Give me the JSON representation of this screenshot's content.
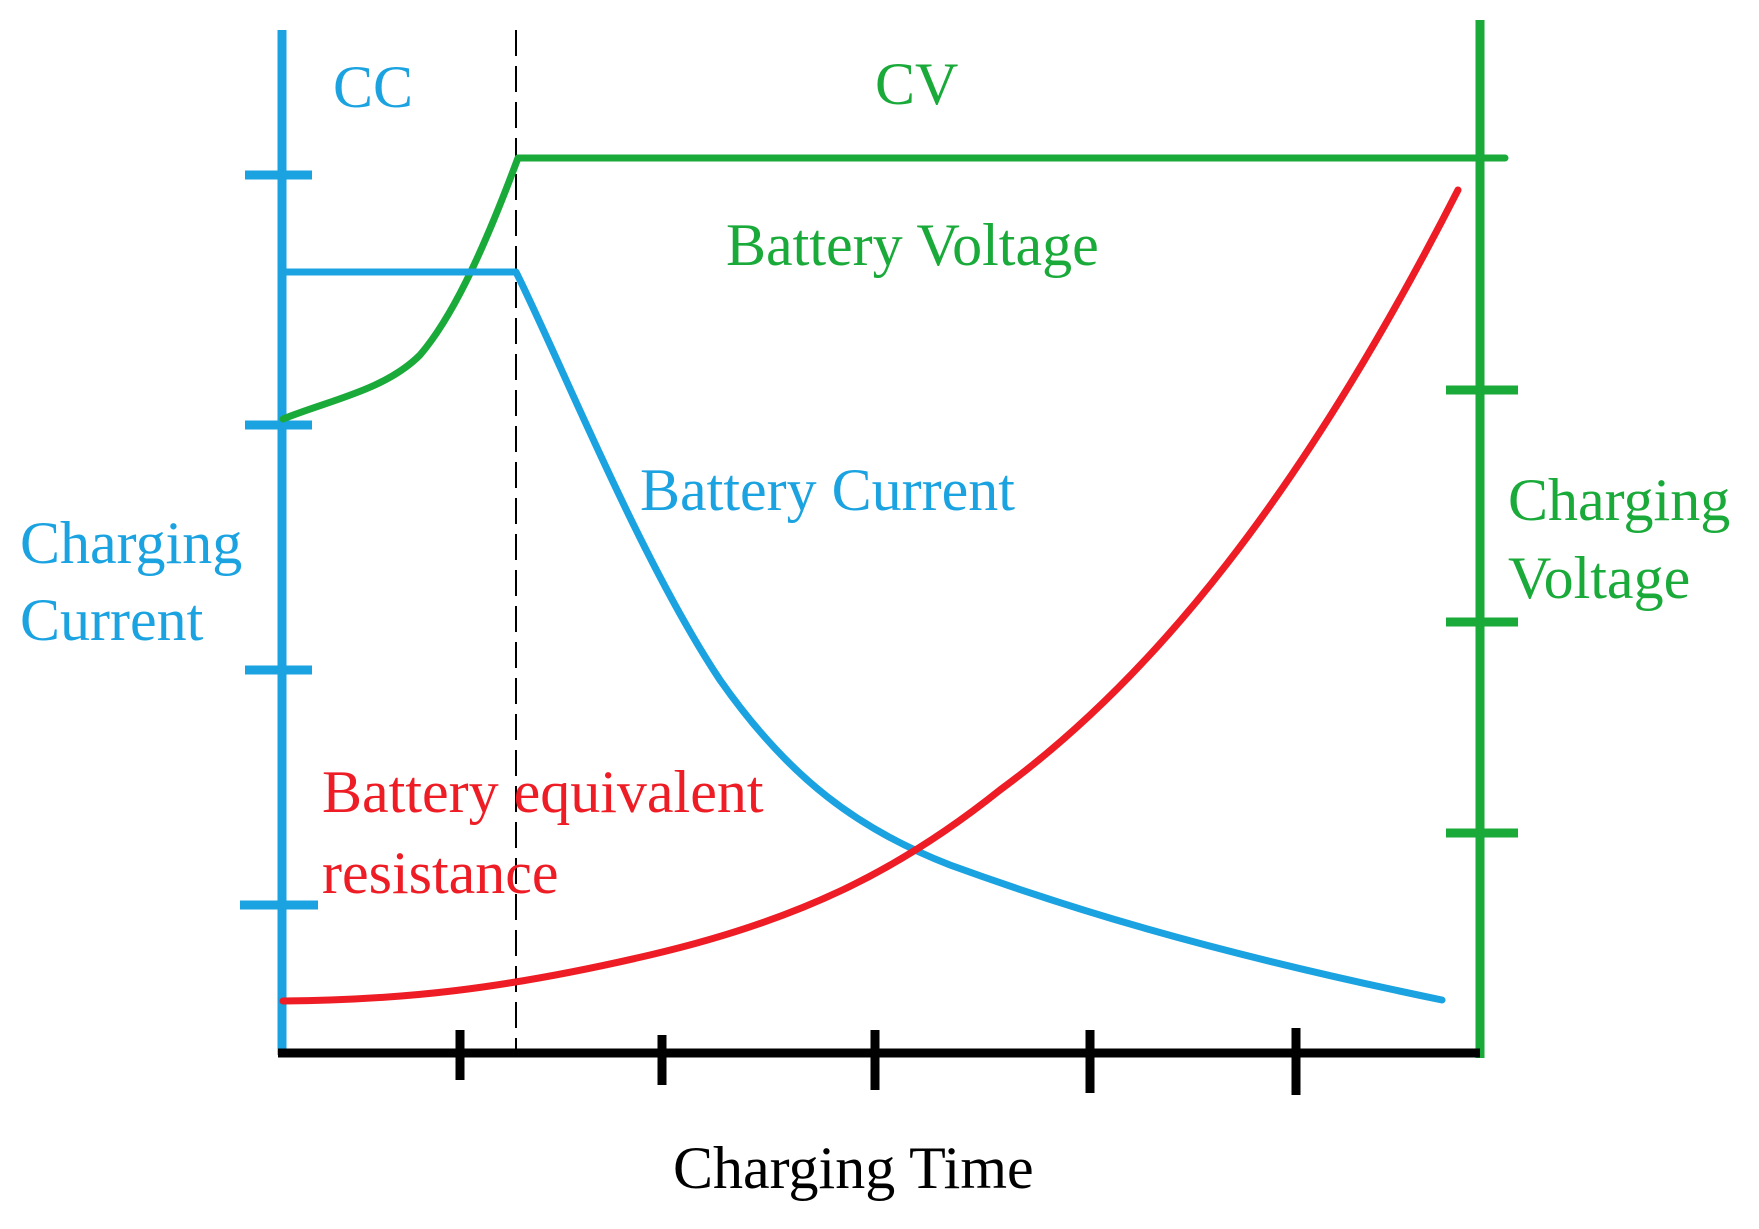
{
  "colors": {
    "current": "#1aa3e0",
    "voltage": "#1aaa3a",
    "resistance": "#ee1c24",
    "time_axis": "#000000"
  },
  "phase_labels": {
    "cc": "CC",
    "cv": "CV"
  },
  "axes": {
    "left_label_line1": "Charging",
    "left_label_line2": "Current",
    "right_label_line1": "Charging",
    "right_label_line2": "Voltage",
    "bottom_label": "Charging Time"
  },
  "curves": {
    "voltage_label": "Battery Voltage",
    "current_label": "Battery Current",
    "resistance_label_line1": "Battery equivalent",
    "resistance_label_line2": "resistance"
  }
}
